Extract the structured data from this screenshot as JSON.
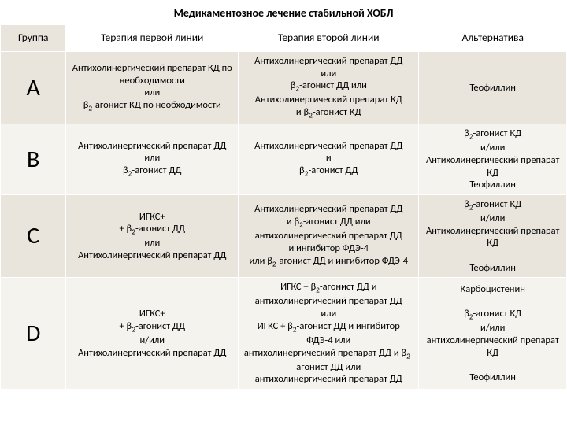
{
  "title": "Медикаментозное лечение стабильной ХОБЛ",
  "headers": {
    "group": "Группа",
    "first": "Терапия первой линии",
    "second": "Терапия второй линии",
    "alt": "Альтернатива"
  },
  "rows": {
    "a": {
      "grp": "A",
      "first": "Антихолинергический препарат КД по необходимости\nили\nβ2-агонист КД по необходимости",
      "second": "Антихолинергический препарат ДД\nили\nβ2-агонист ДД или\nАнтихолинергический препарат КД\nи β2-агонист КД",
      "alt": "Теофиллин"
    },
    "b": {
      "grp": "B",
      "first": "Антихолинергический препарат ДД\nили\nβ2-агонист ДД",
      "second": "Антихолинергический препарат ДД\nи\nβ2-агонист ДД",
      "alt": "β2-агонист КД\nи/или\nАнтихолинергический препарат КД\nТеофиллин"
    },
    "c": {
      "grp": "C",
      "first": "ИГКС+\n+ β2-агонист ДД\nили\nАнтихолинергический препарат ДД",
      "second": "Антихолинергический препарат ДД\nи β2-агонист ДД или\nантихолинергический препарат ДД\nи ингибитор ФДЭ-4\nили β2-агонист ДД и ингибитор ФДЭ-4",
      "alt": "β2-агонист КД\nи/или\nАнтихолинергический препарат КД\n\nТеофиллин"
    },
    "d": {
      "grp": "D",
      "first": "ИГКС+\n+ β2-агонист ДД\nи/или\nАнтихолинергический препарат ДД",
      "second": "ИГКС + β2-агонист ДД и антихолинергический препарат ДД\nили\nИГКС + β2-агонист ДД и ингибитор ФДЭ-4 или\nантихолинергический препарат ДД и β2-агонист ДД или\nантихолинергический препарат ДД",
      "alt": "Карбоцистенин\n\nβ2-агонист КД\nи/или\nантихолинергический препарат КД\n\nТеофиллин"
    }
  },
  "colors": {
    "even": "#e9e5dc",
    "odd": "#f5f3ee"
  }
}
